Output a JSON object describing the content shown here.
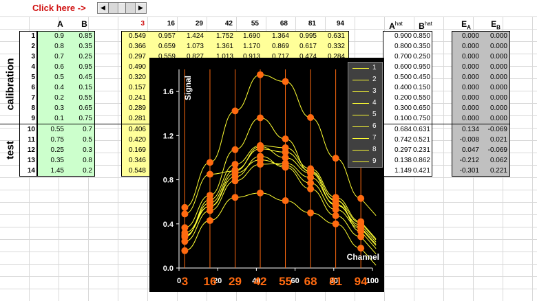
{
  "toolbar": {
    "click_label": "Click here ->",
    "spin_left_icon": "arrow-left-icon",
    "spin_right_icon": "arrow-right-icon"
  },
  "headers": {
    "A": "A",
    "B": "B",
    "channels": [
      "3",
      "16",
      "29",
      "42",
      "55",
      "68",
      "81",
      "94"
    ],
    "a_hat": "A",
    "b_hat": "B",
    "hat_sup": "hat",
    "e_a": "E",
    "e_b": "E",
    "e_a_sub": "A",
    "e_b_sub": "B"
  },
  "side_labels": {
    "calibration": "calibration",
    "test": "test"
  },
  "rows": [
    {
      "n": "1",
      "A": "0.9",
      "B": "0.85"
    },
    {
      "n": "2",
      "A": "0.8",
      "B": "0.35"
    },
    {
      "n": "3",
      "A": "0.7",
      "B": "0.25"
    },
    {
      "n": "4",
      "A": "0.6",
      "B": "0.95"
    },
    {
      "n": "5",
      "A": "0.5",
      "B": "0.45"
    },
    {
      "n": "6",
      "A": "0.4",
      "B": "0.15"
    },
    {
      "n": "7",
      "A": "0.2",
      "B": "0.55"
    },
    {
      "n": "8",
      "A": "0.3",
      "B": "0.65"
    },
    {
      "n": "9",
      "A": "0.1",
      "B": "0.75"
    },
    {
      "n": "10",
      "A": "0.55",
      "B": "0.7"
    },
    {
      "n": "11",
      "A": "0.75",
      "B": "0.5"
    },
    {
      "n": "12",
      "A": "0.25",
      "B": "0.3"
    },
    {
      "n": "13",
      "A": "0.35",
      "B": "0.8"
    },
    {
      "n": "14",
      "A": "1.45",
      "B": "0.2"
    }
  ],
  "signals": [
    [
      "0.549",
      "0.957",
      "1.424",
      "1.752",
      "1.690",
      "1.364",
      "0.995",
      "0.631"
    ],
    [
      "0.366",
      "0.659",
      "1.073",
      "1.361",
      "1.170",
      "0.869",
      "0.617",
      "0.332"
    ],
    [
      "0.297",
      "0.559",
      "0.827",
      "1.013",
      "0.913",
      "0.717",
      "0.474",
      "0.284"
    ],
    [
      "0.490",
      "",
      "",
      "",
      "",
      "",
      "",
      ""
    ],
    [
      "0.320",
      "",
      "",
      "",
      "",
      "",
      "",
      ""
    ],
    [
      "0.157",
      "",
      "",
      "",
      "",
      "",
      "",
      ""
    ],
    [
      "0.241",
      "",
      "",
      "",
      "",
      "",
      "",
      ""
    ],
    [
      "0.289",
      "",
      "",
      "",
      "",
      "",
      "",
      ""
    ],
    [
      "0.281",
      "",
      "",
      "",
      "",
      "",
      "",
      ""
    ],
    [
      "0.406",
      "",
      "",
      "",
      "",
      "",
      "",
      ""
    ],
    [
      "0.420",
      "",
      "",
      "",
      "",
      "",
      "",
      ""
    ],
    [
      "0.169",
      "",
      "",
      "",
      "",
      "",
      "",
      ""
    ],
    [
      "0.346",
      "",
      "",
      "",
      "",
      "",
      "",
      ""
    ],
    [
      "0.548",
      "",
      "",
      "",
      "",
      "",
      "",
      ""
    ]
  ],
  "predicted": [
    [
      "0.900",
      "0.850"
    ],
    [
      "0.800",
      "0.350"
    ],
    [
      "0.700",
      "0.250"
    ],
    [
      "0.600",
      "0.950"
    ],
    [
      "0.500",
      "0.450"
    ],
    [
      "0.400",
      "0.150"
    ],
    [
      "0.200",
      "0.550"
    ],
    [
      "0.300",
      "0.650"
    ],
    [
      "0.100",
      "0.750"
    ],
    [
      "0.684",
      "0.631"
    ],
    [
      "0.742",
      "0.521"
    ],
    [
      "0.297",
      "0.231"
    ],
    [
      "0.138",
      "0.862"
    ],
    [
      "1.149",
      "0.421"
    ]
  ],
  "errors": [
    [
      "0.000",
      "0.000"
    ],
    [
      "0.000",
      "0.000"
    ],
    [
      "0.000",
      "0.000"
    ],
    [
      "0.000",
      "0.000"
    ],
    [
      "0.000",
      "0.000"
    ],
    [
      "0.000",
      "0.000"
    ],
    [
      "0.000",
      "0.000"
    ],
    [
      "0.000",
      "0.000"
    ],
    [
      "0.000",
      "0.000"
    ],
    [
      "0.134",
      "-0.069"
    ],
    [
      "-0.008",
      "0.021"
    ],
    [
      "0.047",
      "-0.069"
    ],
    [
      "-0.212",
      "0.062"
    ],
    [
      "-0.301",
      "0.221"
    ]
  ],
  "chart_data": {
    "type": "line",
    "ylabel": "Signal",
    "xlabel": "Channel",
    "xlim": [
      0,
      100
    ],
    "ylim": [
      0,
      1.8
    ],
    "x_ticks": [
      "0",
      "20",
      "40",
      "60",
      "80",
      "100"
    ],
    "y_ticks": [
      "0.0",
      "0.4",
      "0.8",
      "1.2",
      "1.6"
    ],
    "channel_markers": [
      "3",
      "16",
      "29",
      "42",
      "55",
      "68",
      "81",
      "94"
    ],
    "channel_x": [
      3,
      16,
      29,
      42,
      55,
      68,
      81,
      94
    ],
    "legend": [
      "1",
      "2",
      "3",
      "4",
      "5",
      "6",
      "7",
      "8",
      "9"
    ],
    "line_color": "#ffff33",
    "marker_color": "#ff6a10",
    "series": [
      {
        "name": "1",
        "values": [
          0.549,
          0.957,
          1.424,
          1.752,
          1.69,
          1.364,
          0.995,
          0.631
        ]
      },
      {
        "name": "2",
        "values": [
          0.366,
          0.659,
          1.073,
          1.361,
          1.17,
          0.869,
          0.617,
          0.332
        ]
      },
      {
        "name": "3",
        "values": [
          0.297,
          0.559,
          0.827,
          1.013,
          0.913,
          0.717,
          0.474,
          0.284
        ]
      },
      {
        "name": "4",
        "values": [
          0.49,
          0.85,
          0.88,
          1.1,
          1.0,
          0.86,
          0.57,
          0.39
        ]
      },
      {
        "name": "5",
        "values": [
          0.32,
          0.56,
          0.86,
          0.98,
          0.93,
          0.77,
          0.53,
          0.36
        ]
      },
      {
        "name": "6",
        "values": [
          0.157,
          0.43,
          0.64,
          0.68,
          0.61,
          0.5,
          0.4,
          0.18
        ]
      },
      {
        "name": "7",
        "values": [
          0.241,
          0.52,
          0.79,
          0.94,
          0.95,
          0.82,
          0.58,
          0.37
        ]
      },
      {
        "name": "8",
        "values": [
          0.289,
          0.59,
          0.89,
          1.08,
          1.05,
          0.88,
          0.61,
          0.41
        ]
      },
      {
        "name": "9",
        "values": [
          0.281,
          0.62,
          0.94,
          1.11,
          1.09,
          0.9,
          0.64,
          0.42
        ]
      }
    ]
  }
}
